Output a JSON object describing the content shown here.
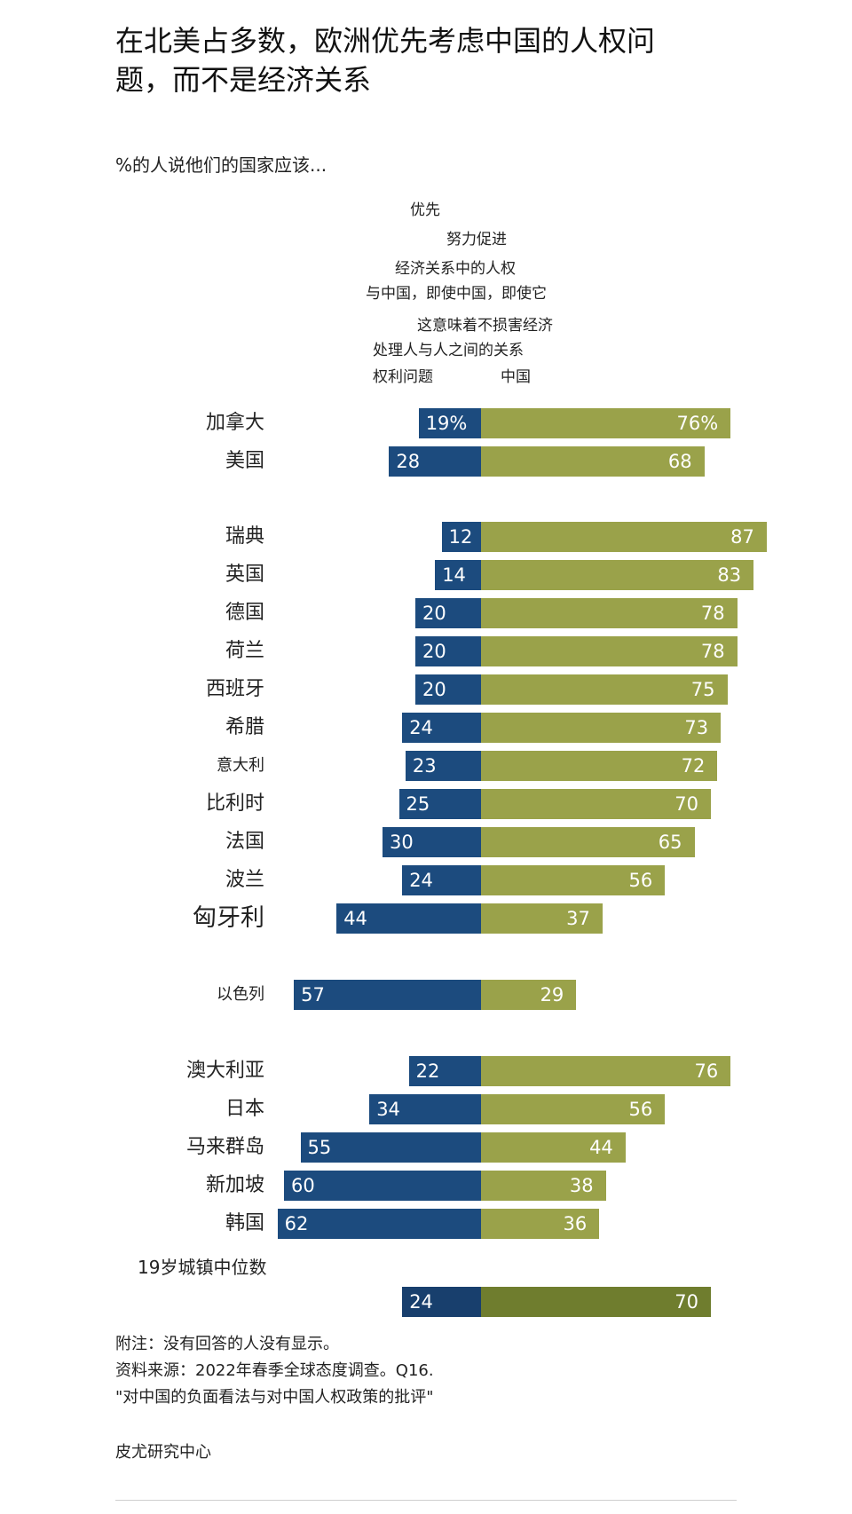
{
  "title": "在北美占多数，欧洲优先考虑中国的人权问题，而不是经济关系",
  "subtitle": "%的人说他们的国家应该...",
  "column_header_lines": [
    "优先",
    "努力促进",
    "经济关系中的人权",
    "与中国，即使中国，即使它",
    "这意味着不损害经济",
    "处理人与人之间的关系"
  ],
  "col_left_label": "权利问题",
  "col_right_label": "中国",
  "colors": {
    "human_rights": "#1c4b7e",
    "economic": "#9aa24a",
    "median_economic": "#6f7d2e"
  },
  "chart_data": {
    "type": "bar",
    "orientation": "horizontal diverging",
    "categories": [
      "加拿大",
      "美国",
      "瑞典",
      "英国",
      "德国",
      "荷兰",
      "西班牙",
      "希腊",
      "意大利",
      "比利时",
      "法国",
      "波兰",
      "匈牙利",
      "以色列",
      "澳大利亚",
      "日本",
      "马来群岛",
      "新加坡",
      "韩国",
      "19岁城镇中位数"
    ],
    "series": [
      {
        "name": "权利问题",
        "values": [
          19,
          28,
          12,
          14,
          20,
          20,
          20,
          24,
          23,
          25,
          30,
          24,
          44,
          57,
          22,
          34,
          55,
          60,
          62,
          24
        ]
      },
      {
        "name": "中国",
        "values": [
          76,
          68,
          87,
          83,
          78,
          78,
          75,
          73,
          72,
          70,
          65,
          56,
          37,
          29,
          76,
          56,
          44,
          38,
          36,
          70
        ]
      }
    ],
    "value_labels": {
      "left": [
        "19%",
        "28",
        "12",
        "14",
        "20",
        "20",
        "20",
        "24",
        "23",
        "25",
        "30",
        "24",
        "44",
        "57",
        "22",
        "34",
        "55",
        "60",
        "62",
        "24"
      ],
      "right": [
        "76%",
        "68",
        "87",
        "83",
        "78",
        "78",
        "75",
        "73",
        "72",
        "70",
        "65",
        "56",
        "37",
        "29",
        "76",
        "56",
        "44",
        "38",
        "36",
        "70"
      ]
    }
  },
  "notes": [
    "附注：没有回答的人没有显示。",
    "资料来源：2022年春季全球态度调查。Q16.",
    "\"对中国的负面看法与对中国人权政策的批评\""
  ],
  "source": "皮尤研究中心"
}
